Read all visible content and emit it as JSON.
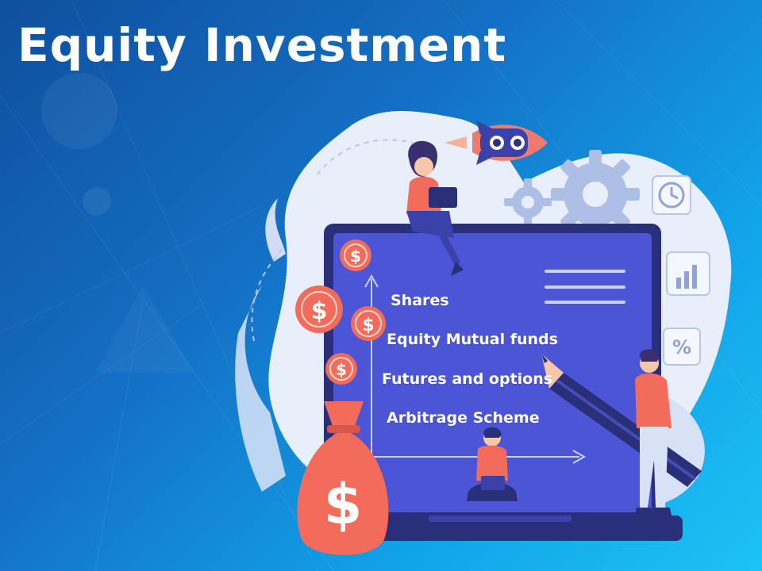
{
  "title": "Equity Investment",
  "items": [
    {
      "label": "Shares"
    },
    {
      "label": "Equity Mutual funds"
    },
    {
      "label": "Futures and options"
    },
    {
      "label": "Arbitrage Scheme"
    }
  ],
  "colors": {
    "background_start": "#0f4f9e",
    "background_end": "#1cc3f5",
    "screen": "#4b55d6",
    "laptop_frame": "#2a2f7a",
    "coin": "#f26b5b",
    "blob": "#e8eefa"
  },
  "icons": [
    "rocket-icon",
    "gear-icon",
    "clock-icon",
    "bar-chart-icon",
    "percent-icon",
    "dollar-coin-icon",
    "money-bag-icon",
    "pencil-icon"
  ]
}
